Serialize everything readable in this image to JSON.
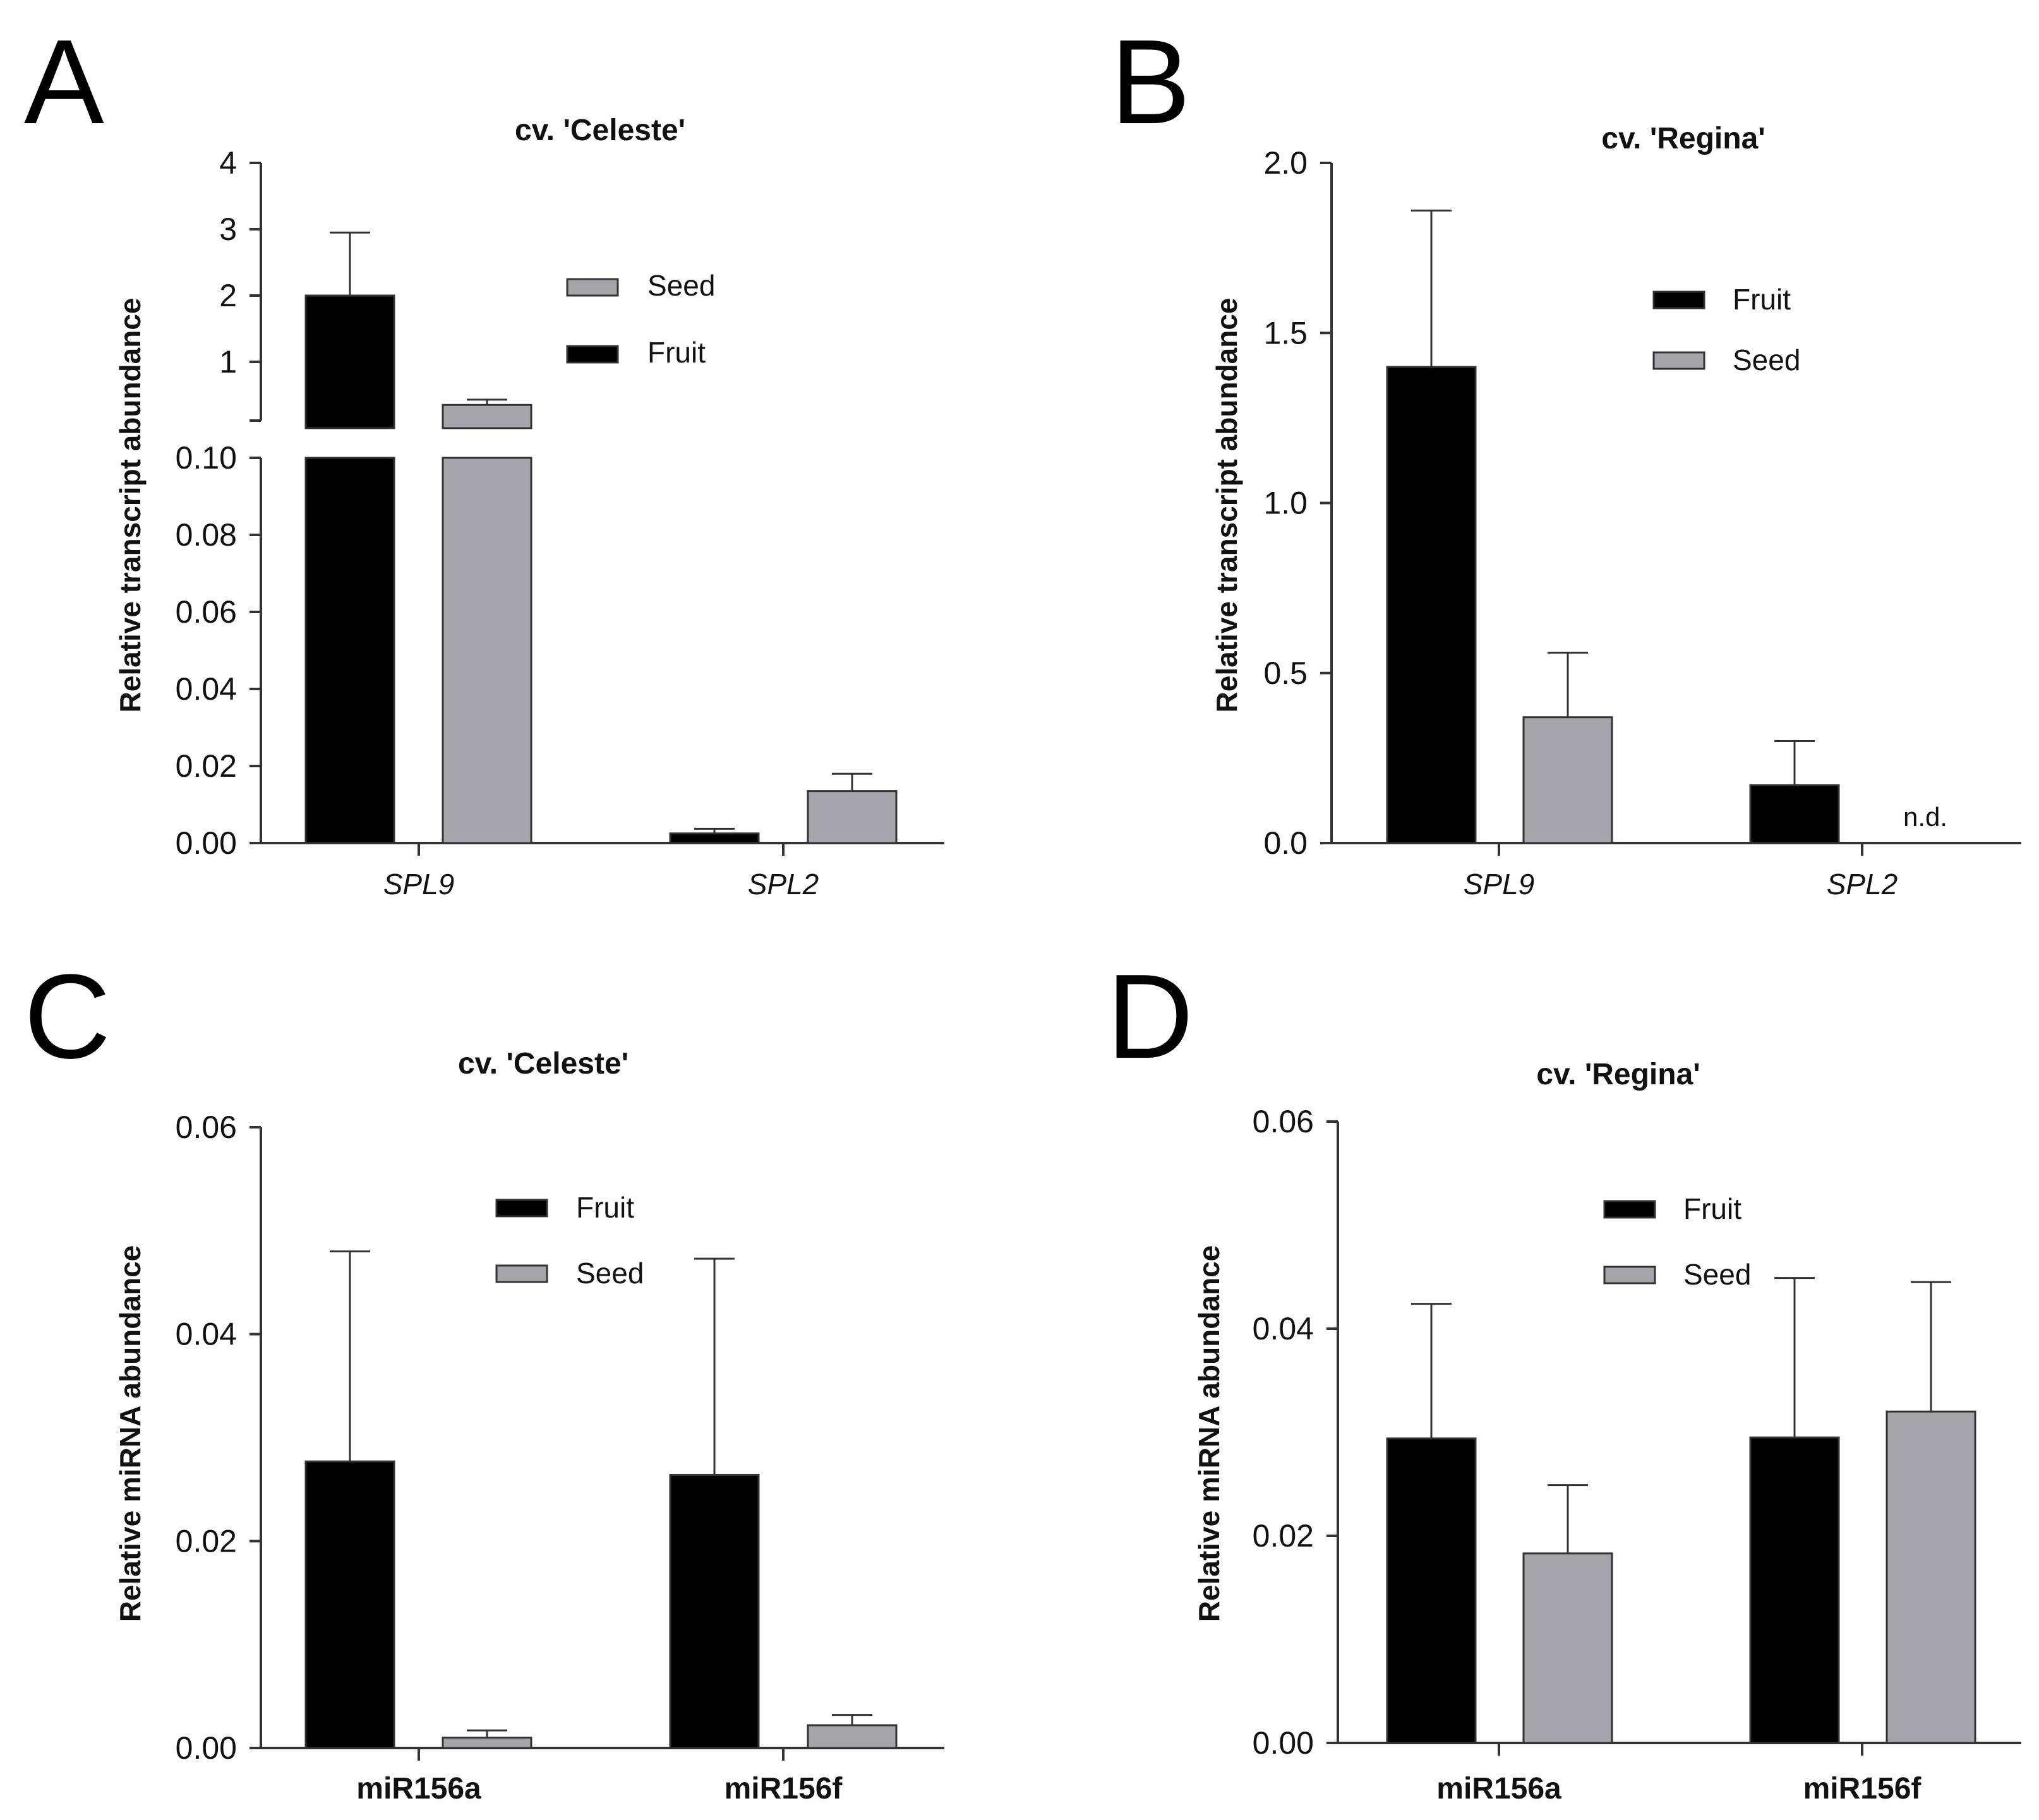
{
  "colors": {
    "fruit": "#000000",
    "seed": "#a5a5a9",
    "axis": "#333333"
  },
  "chart_data": [
    {
      "panel": "A",
      "type": "bar",
      "title": "cv. 'Celeste'",
      "ylabel": "Relative transcript abundance",
      "xlabel": "",
      "categories": [
        "SPL9",
        "SPL2"
      ],
      "categories_italic": true,
      "series": [
        {
          "name": "Fruit",
          "color": "#000000",
          "values": [
            2.0,
            0.0025
          ],
          "errors": [
            0.95,
            0.0012
          ]
        },
        {
          "name": "Seed",
          "color": "#a5a5a9",
          "values": [
            0.35,
            0.0135
          ],
          "errors": [
            0.08,
            0.0045
          ]
        }
      ],
      "legend_order": [
        "Seed",
        "Fruit"
      ],
      "axis_break": true,
      "ylim_lower": [
        0,
        0.1
      ],
      "ylim_upper": [
        0,
        4
      ],
      "yticks_lower": [
        "0.00",
        "0.02",
        "0.04",
        "0.06",
        "0.08",
        "0.10"
      ],
      "yticks_upper": [
        "1",
        "2",
        "3",
        "4"
      ],
      "notes": []
    },
    {
      "panel": "B",
      "type": "bar",
      "title": "cv. 'Regina'",
      "ylabel": "Relative transcript abundance",
      "xlabel": "",
      "categories": [
        "SPL9",
        "SPL2"
      ],
      "categories_italic": true,
      "series": [
        {
          "name": "Fruit",
          "color": "#000000",
          "values": [
            1.4,
            0.17
          ],
          "errors": [
            0.46,
            0.13
          ]
        },
        {
          "name": "Seed",
          "color": "#a5a5a9",
          "values": [
            0.37,
            null
          ],
          "errors": [
            0.19,
            null
          ]
        }
      ],
      "legend_order": [
        "Fruit",
        "Seed"
      ],
      "ylim": [
        0,
        2.0
      ],
      "yticks": [
        "0.0",
        "0.5",
        "1.0",
        "1.5",
        "2.0"
      ],
      "notes": [
        "n.d."
      ]
    },
    {
      "panel": "C",
      "type": "bar",
      "title": "cv. 'Celeste'",
      "ylabel": "Relative miRNA abundance",
      "xlabel": "",
      "categories": [
        "miR156a",
        "miR156f"
      ],
      "categories_italic": false,
      "series": [
        {
          "name": "Fruit",
          "color": "#000000",
          "values": [
            0.0277,
            0.0264
          ],
          "errors": [
            0.0203,
            0.0209
          ]
        },
        {
          "name": "Seed",
          "color": "#a5a5a9",
          "values": [
            0.001,
            0.0022
          ],
          "errors": [
            0.0007,
            0.001
          ]
        }
      ],
      "legend_order": [
        "Fruit",
        "Seed"
      ],
      "ylim": [
        0,
        0.06
      ],
      "yticks": [
        "0.00",
        "0.02",
        "0.04",
        "0.06"
      ],
      "notes": []
    },
    {
      "panel": "D",
      "type": "bar",
      "title": "cv. 'Regina'",
      "ylabel": "Relative miRNA abundance",
      "xlabel": "",
      "categories": [
        "miR156a",
        "miR156f"
      ],
      "categories_italic": false,
      "series": [
        {
          "name": "Fruit",
          "color": "#000000",
          "values": [
            0.0294,
            0.0295
          ],
          "errors": [
            0.013,
            0.0154
          ]
        },
        {
          "name": "Seed",
          "color": "#a5a5a9",
          "values": [
            0.0183,
            0.032
          ],
          "errors": [
            0.0066,
            0.0125
          ]
        }
      ],
      "legend_order": [
        "Fruit",
        "Seed"
      ],
      "ylim": [
        0,
        0.06
      ],
      "yticks": [
        "0.00",
        "0.02",
        "0.04",
        "0.06"
      ],
      "notes": []
    }
  ]
}
